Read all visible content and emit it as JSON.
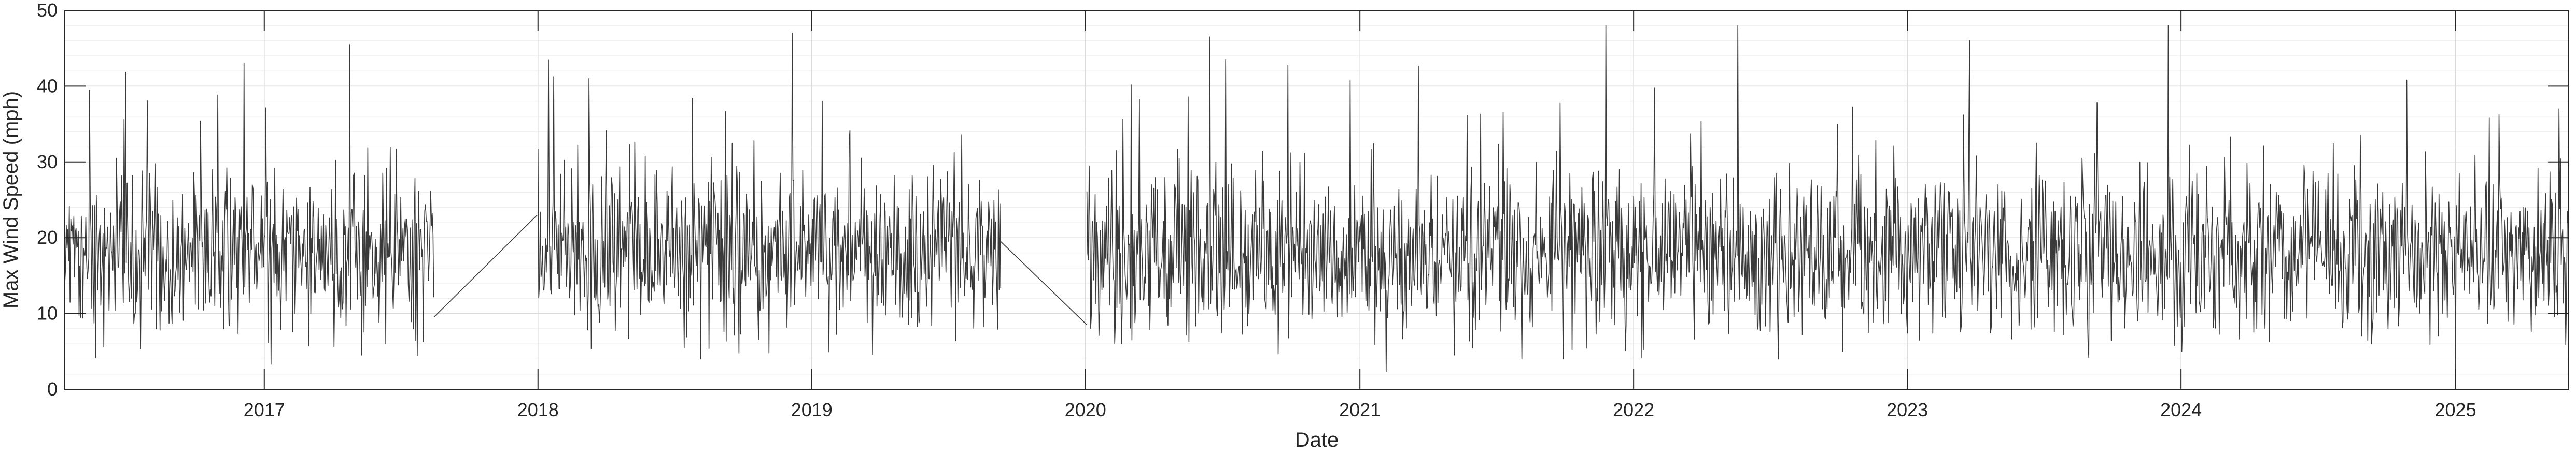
{
  "chart_data": {
    "type": "line",
    "title": "",
    "xlabel": "Date",
    "ylabel": "Max Wind Speed (mph)",
    "xlim": [
      "2016-04-10",
      "2025-06-01"
    ],
    "ylim": [
      0,
      50
    ],
    "y_ticks": [
      0,
      10,
      20,
      30,
      40,
      50
    ],
    "x_ticks": [
      {
        "date": "2017-01-01",
        "label": "2017"
      },
      {
        "date": "2018-01-01",
        "label": "2018"
      },
      {
        "date": "2019-01-01",
        "label": "2019"
      },
      {
        "date": "2020-01-01",
        "label": "2020"
      },
      {
        "date": "2021-01-01",
        "label": "2021"
      },
      {
        "date": "2022-01-01",
        "label": "2022"
      },
      {
        "date": "2023-01-01",
        "label": "2023"
      },
      {
        "date": "2024-01-01",
        "label": "2024"
      },
      {
        "date": "2025-01-01",
        "label": "2025"
      }
    ],
    "grid": true,
    "minor_grid": true,
    "legend": "none",
    "colors": {
      "line": "#3a3a3a",
      "axis": "#262626",
      "grid_major": "#d9d9d9",
      "grid_minor": "#efefef"
    },
    "series": [
      {
        "sampling": "approximately daily; values in gaps are straight-line joins",
        "segments": [
          {
            "start": "2016-04-10",
            "end": "2017-08-15",
            "typical_range": [
              10,
              30
            ],
            "max_points": [
              {
                "date": "2017-04-25",
                "value": 45.5
              },
              {
                "date": "2016-12-05",
                "value": 43
              }
            ],
            "min_points": [
              {
                "date": "2017-01-10",
                "value": 3.3
              }
            ]
          },
          {
            "start": "2017-08-15",
            "end": "2017-12-31",
            "bridge": true,
            "values": [
              9.5,
              23
            ]
          },
          {
            "start": "2018-01-01",
            "end": "2019-09-10",
            "typical_range": [
              10,
              30
            ],
            "max_points": [
              {
                "date": "2018-01-15",
                "value": 43.5
              },
              {
                "date": "2018-03-10",
                "value": 41
              },
              {
                "date": "2019-01-15",
                "value": 38
              }
            ],
            "min_points": [
              {
                "date": "2018-07-15",
                "value": 5.5
              }
            ]
          },
          {
            "start": "2019-09-10",
            "end": "2020-01-03",
            "bridge": true,
            "values": [
              19.5,
              8.5
            ]
          },
          {
            "start": "2020-01-03",
            "end": "2025-06-01",
            "typical_range": [
              10,
              30
            ],
            "max_points": [
              {
                "date": "2020-06-15",
                "value": 46.5
              },
              {
                "date": "2021-11-25",
                "value": 48
              },
              {
                "date": "2022-05-20",
                "value": 48
              },
              {
                "date": "2023-03-25",
                "value": 46
              },
              {
                "date": "2023-12-15",
                "value": 48
              }
            ],
            "min_points": [
              {
                "date": "2021-02-05",
                "value": 2.3
              },
              {
                "date": "2025-01-01",
                "value": 0
              }
            ]
          }
        ]
      }
    ]
  }
}
